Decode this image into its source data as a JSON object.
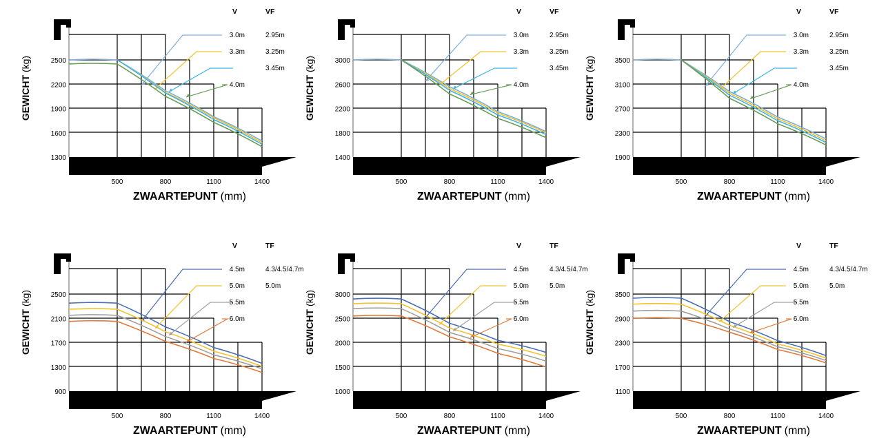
{
  "chart_data": [
    {
      "type": "line",
      "header": [
        "V",
        "VF"
      ],
      "xlabel": "ZWAARTEPUNT",
      "xunit": "(mm)",
      "ylabel": "GEWICHT",
      "yunit": "(kg)",
      "x_ticks": [
        "500",
        "800",
        "1100",
        "1400"
      ],
      "y_ticks": [
        "2500",
        "2200",
        "1900",
        "1600",
        "1300"
      ],
      "ylim": [
        1300,
        2500
      ],
      "series": [
        {
          "name": "3.0m",
          "tf": "2.95m",
          "color": "#7faedc",
          "values": [
            [
              200,
              2500
            ],
            [
              500,
              2500
            ],
            [
              800,
              2120
            ],
            [
              1100,
              1800
            ],
            [
              1400,
              1500
            ]
          ]
        },
        {
          "name": "3.3m",
          "tf": "3.25m",
          "color": "#f2c230",
          "values": [
            [
              500,
              2500
            ],
            [
              800,
              2100
            ],
            [
              1100,
              1785
            ],
            [
              1400,
              1480
            ]
          ]
        },
        {
          "name": "",
          "tf": "3.45m",
          "color": "#3fb5e6",
          "values": [
            [
              500,
              2500
            ],
            [
              800,
              2090
            ],
            [
              1100,
              1765
            ],
            [
              1400,
              1460
            ]
          ]
        },
        {
          "name": "4.0m",
          "tf": "",
          "color": "#6a9e5a",
          "values": [
            [
              200,
              2450
            ],
            [
              500,
              2450
            ],
            [
              800,
              2050
            ],
            [
              1100,
              1730
            ],
            [
              1400,
              1430
            ]
          ]
        }
      ]
    },
    {
      "type": "line",
      "header": [
        "V",
        "VF"
      ],
      "xlabel": "ZWAARTEPUNT",
      "xunit": "(mm)",
      "ylabel": "GEWICHT",
      "yunit": "(kg)",
      "x_ticks": [
        "500",
        "800",
        "1100",
        "1400"
      ],
      "y_ticks": [
        "3000",
        "2600",
        "2200",
        "1800",
        "1400"
      ],
      "ylim": [
        1400,
        3000
      ],
      "series": [
        {
          "name": "3.0m",
          "tf": "2.95m",
          "color": "#7faedc",
          "values": [
            [
              200,
              3000
            ],
            [
              500,
              3000
            ],
            [
              800,
              2560
            ],
            [
              1100,
              2150
            ],
            [
              1400,
              1820
            ]
          ]
        },
        {
          "name": "3.3m",
          "tf": "3.25m",
          "color": "#f2c230",
          "values": [
            [
              500,
              3000
            ],
            [
              800,
              2530
            ],
            [
              1100,
              2125
            ],
            [
              1400,
              1800
            ]
          ]
        },
        {
          "name": "",
          "tf": "3.45m",
          "color": "#3fb5e6",
          "values": [
            [
              500,
              3000
            ],
            [
              800,
              2500
            ],
            [
              1100,
              2095
            ],
            [
              1400,
              1770
            ]
          ]
        },
        {
          "name": "4.0m",
          "tf": "",
          "color": "#6a9e5a",
          "values": [
            [
              500,
              3000
            ],
            [
              800,
              2440
            ],
            [
              1100,
              2040
            ],
            [
              1400,
              1720
            ]
          ]
        }
      ]
    },
    {
      "type": "line",
      "header": [
        "V",
        "VF"
      ],
      "xlabel": "ZWAARTEPUNT",
      "xunit": "(mm)",
      "ylabel": "GEWICHT",
      "yunit": "(kg)",
      "x_ticks": [
        "500",
        "800",
        "1100",
        "1400"
      ],
      "y_ticks": [
        "3500",
        "3100",
        "2700",
        "2300",
        "1900"
      ],
      "ylim": [
        1900,
        3500
      ],
      "series": [
        {
          "name": "3.0m",
          "tf": "2.95m",
          "color": "#7faedc",
          "values": [
            [
              200,
              3500
            ],
            [
              500,
              3500
            ],
            [
              800,
              2980
            ],
            [
              1100,
              2560
            ],
            [
              1400,
              2200
            ]
          ]
        },
        {
          "name": "3.3m",
          "tf": "3.25m",
          "color": "#f2c230",
          "values": [
            [
              500,
              3500
            ],
            [
              800,
              2950
            ],
            [
              1100,
              2530
            ],
            [
              1400,
              2170
            ]
          ]
        },
        {
          "name": "",
          "tf": "3.45m",
          "color": "#3fb5e6",
          "values": [
            [
              500,
              3500
            ],
            [
              800,
              2920
            ],
            [
              1100,
              2500
            ],
            [
              1400,
              2140
            ]
          ]
        },
        {
          "name": "4.0m",
          "tf": "",
          "color": "#6a9e5a",
          "values": [
            [
              500,
              3500
            ],
            [
              800,
              2870
            ],
            [
              1100,
              2450
            ],
            [
              1400,
              2100
            ]
          ]
        }
      ]
    },
    {
      "type": "line",
      "header": [
        "V",
        "TF"
      ],
      "xlabel": "ZWAARTEPUNT",
      "xunit": "(mm)",
      "ylabel": "GEWICHT",
      "yunit": "(kg)",
      "x_ticks": [
        "500",
        "800",
        "1100",
        "1400"
      ],
      "y_ticks": [
        "2500",
        "2100",
        "1700",
        "1300",
        "900"
      ],
      "ylim": [
        900,
        2500
      ],
      "series": [
        {
          "name": "4.5m",
          "tf": "4.3/4.5/4.7m",
          "color": "#4a6eb0",
          "values": [
            [
              200,
              2350
            ],
            [
              500,
              2350
            ],
            [
              800,
              1960
            ],
            [
              1100,
              1620
            ],
            [
              1400,
              1360
            ]
          ]
        },
        {
          "name": "5.0m",
          "tf": "5.0m",
          "color": "#f2c230",
          "values": [
            [
              200,
              2250
            ],
            [
              500,
              2250
            ],
            [
              800,
              1880
            ],
            [
              1100,
              1560
            ],
            [
              1400,
              1310
            ]
          ]
        },
        {
          "name": "5.5m",
          "tf": "",
          "color": "#a0a0a0",
          "values": [
            [
              200,
              2150
            ],
            [
              500,
              2150
            ],
            [
              800,
              1800
            ],
            [
              1100,
              1500
            ],
            [
              1400,
              1270
            ]
          ]
        },
        {
          "name": "6.0m",
          "tf": "",
          "color": "#e07a3a",
          "values": [
            [
              200,
              2050
            ],
            [
              500,
              2050
            ],
            [
              800,
              1720
            ],
            [
              1100,
              1440
            ],
            [
              1400,
              1210
            ]
          ]
        }
      ]
    },
    {
      "type": "line",
      "header": [
        "V",
        "TF"
      ],
      "xlabel": "ZWAARTEPUNT",
      "xunit": "(mm)",
      "ylabel": "GEWICHT",
      "yunit": "(kg)",
      "x_ticks": [
        "500",
        "800",
        "1100",
        "1400"
      ],
      "y_ticks": [
        "3000",
        "2500",
        "2000",
        "1500",
        "1000"
      ],
      "ylim": [
        1000,
        3000
      ],
      "series": [
        {
          "name": "4.5m",
          "tf": "4.3/4.5/4.7m",
          "color": "#4a6eb0",
          "values": [
            [
              200,
              2900
            ],
            [
              500,
              2900
            ],
            [
              800,
              2400
            ],
            [
              1100,
              2050
            ],
            [
              1400,
              1800
            ]
          ]
        },
        {
          "name": "5.0m",
          "tf": "5.0m",
          "color": "#f2c230",
          "values": [
            [
              200,
              2800
            ],
            [
              500,
              2800
            ],
            [
              800,
              2300
            ],
            [
              1100,
              1970
            ],
            [
              1400,
              1720
            ]
          ]
        },
        {
          "name": "5.5m",
          "tf": "",
          "color": "#a0a0a0",
          "values": [
            [
              200,
              2700
            ],
            [
              500,
              2700
            ],
            [
              800,
              2210
            ],
            [
              1100,
              1880
            ],
            [
              1400,
              1620
            ]
          ]
        },
        {
          "name": "6.0m",
          "tf": "",
          "color": "#e07a3a",
          "values": [
            [
              200,
              2550
            ],
            [
              500,
              2550
            ],
            [
              800,
              2120
            ],
            [
              1100,
              1780
            ],
            [
              1400,
              1500
            ]
          ]
        }
      ]
    },
    {
      "type": "line",
      "header": [
        "V",
        "TF"
      ],
      "xlabel": "ZWAARTEPUNT",
      "xunit": "(mm)",
      "ylabel": "GEWICHT",
      "yunit": "(kg)",
      "x_ticks": [
        "500",
        "800",
        "1100",
        "1400"
      ],
      "y_ticks": [
        "3500",
        "2900",
        "2300",
        "1700",
        "1100"
      ],
      "ylim": [
        1100,
        3500
      ],
      "series": [
        {
          "name": "4.5m",
          "tf": "4.3/4.5/4.7m",
          "color": "#4a6eb0",
          "values": [
            [
              200,
              3400
            ],
            [
              500,
              3400
            ],
            [
              800,
              2820
            ],
            [
              1100,
              2350
            ],
            [
              1400,
              1980
            ]
          ]
        },
        {
          "name": "5.0m",
          "tf": "5.0m",
          "color": "#f2c230",
          "values": [
            [
              200,
              3250
            ],
            [
              500,
              3250
            ],
            [
              800,
              2730
            ],
            [
              1100,
              2270
            ],
            [
              1400,
              1920
            ]
          ]
        },
        {
          "name": "5.5m",
          "tf": "",
          "color": "#a0a0a0",
          "values": [
            [
              200,
              3080
            ],
            [
              500,
              3080
            ],
            [
              800,
              2640
            ],
            [
              1100,
              2200
            ],
            [
              1400,
              1860
            ]
          ]
        },
        {
          "name": "6.0m",
          "tf": "",
          "color": "#e07a3a",
          "values": [
            [
              200,
              2900
            ],
            [
              500,
              2900
            ],
            [
              800,
              2560
            ],
            [
              1100,
              2130
            ],
            [
              1400,
              1800
            ]
          ]
        }
      ]
    }
  ]
}
